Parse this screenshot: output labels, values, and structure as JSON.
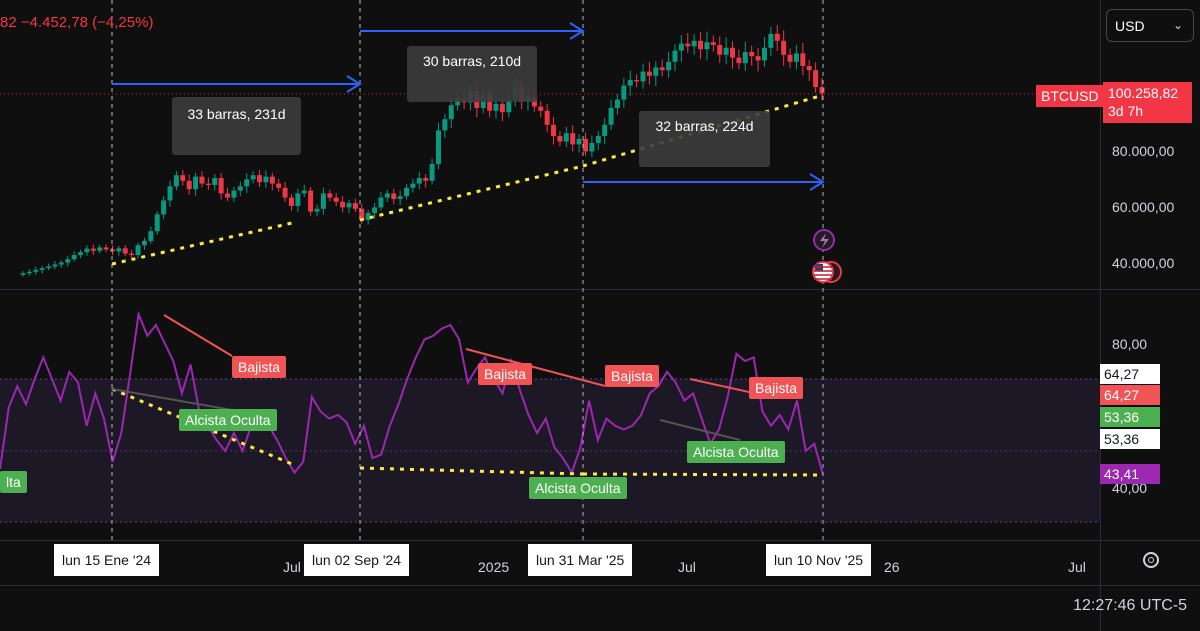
{
  "header": {
    "change_text": "82  −4.452,78 (−4,25%)"
  },
  "currency_select": {
    "value": "USD"
  },
  "symbol_label": {
    "symbol": "BTCUSD",
    "price": "100.258,82",
    "countdown": "3d 7h"
  },
  "clock": "12:27:46 UTC-5",
  "colors": {
    "up": "#089981",
    "down": "#f23645",
    "rsi": "#9c27b0",
    "dotted": "#ffeb3b",
    "arrow": "#2962ff",
    "bear_label": "#f05454",
    "bull_label": "#4caf50"
  },
  "price_axis": {
    "ticks": [
      "80.000,00",
      "60.000,00",
      "40.000,00"
    ]
  },
  "rsi_axis": {
    "ticks": [
      "80,00",
      "40,00"
    ],
    "badges": [
      "64,27",
      "64,27",
      "53,36",
      "53,36",
      "43,41"
    ]
  },
  "time_axis": {
    "ticks": [
      "Jul",
      "2025",
      "Jul",
      "26",
      "Jul"
    ],
    "crosshair_labels": [
      "lun 15 Ene '24",
      "lun 02 Sep '24",
      "lun 31 Mar '25",
      "lun 10 Nov '25"
    ]
  },
  "annotations": {
    "range_labels": [
      "33 barras, 231d",
      "30 barras, 210d",
      "32 barras, 224d"
    ],
    "divergence_labels": [
      "Bajista",
      "Bajista",
      "Bajista",
      "Bajista",
      "Alcista Oculta",
      "Alcista Oculta",
      "Alcista Oculta",
      "lta"
    ]
  },
  "chart_data": {
    "type": "candlestick",
    "timeframe": "3d",
    "x_range": [
      "2023-10",
      "2025-11"
    ],
    "price_ylim": [
      34000,
      122000
    ],
    "closes": [
      36000,
      36500,
      37200,
      37800,
      38400,
      39100,
      39800,
      41000,
      42500,
      43500,
      44800,
      44000,
      45200,
      44500,
      43800,
      44900,
      43000,
      42500,
      46000,
      47500,
      51000,
      57000,
      62000,
      67000,
      71000,
      69000,
      66000,
      70500,
      68000,
      67500,
      70000,
      64500,
      63000,
      65500,
      67000,
      69500,
      71000,
      68500,
      70500,
      68000,
      66500,
      63000,
      60000,
      64500,
      65500,
      58000,
      59000,
      64500,
      63000,
      61500,
      59500,
      61000,
      59000,
      55000,
      57500,
      59500,
      63000,
      64500,
      62500,
      63500,
      66500,
      68000,
      70000,
      69000,
      75000,
      87000,
      91000,
      96000,
      98500,
      97000,
      101000,
      95000,
      99500,
      94000,
      96500,
      93500,
      98000,
      102500,
      97500,
      99000,
      95500,
      94000,
      89000,
      85000,
      83000,
      86000,
      82000,
      84000,
      79500,
      82500,
      85000,
      89000,
      95000,
      98000,
      103000,
      105000,
      104500,
      108000,
      106500,
      109500,
      108500,
      111500,
      115500,
      118000,
      117000,
      119000,
      116000,
      118500,
      117500,
      114000,
      116500,
      113000,
      111000,
      115000,
      113500,
      112000,
      116500,
      121500,
      119000,
      114000,
      111500,
      114500,
      110000,
      108500,
      102500,
      100258.82
    ],
    "rsi": [
      45,
      62,
      68,
      63,
      70,
      76,
      70,
      64,
      72,
      69,
      57,
      66,
      59,
      47,
      55,
      71,
      88,
      82,
      85,
      80,
      75,
      66,
      74,
      61,
      57,
      53,
      50,
      55,
      50,
      57,
      56,
      57,
      53,
      48,
      44,
      47,
      65,
      61,
      59,
      60,
      58,
      52,
      57,
      48,
      49,
      57,
      63,
      70,
      76,
      81,
      82,
      84,
      85,
      81,
      69,
      73,
      76,
      70,
      66,
      75,
      67,
      60,
      55,
      59,
      51,
      48,
      44,
      51,
      64,
      53,
      59,
      57,
      56,
      57,
      60,
      66,
      68,
      72,
      69,
      64,
      66,
      59,
      52,
      56,
      65,
      77,
      75,
      76,
      61,
      57,
      60,
      56,
      64,
      50,
      52,
      43.41
    ],
    "rsi_ylim": [
      30,
      93
    ],
    "rsi_band": [
      30,
      70
    ],
    "measure_ranges": [
      {
        "label": "33 barras, 231d",
        "bars": 33,
        "days": 231
      },
      {
        "label": "30 barras, 210d",
        "bars": 30,
        "days": 210
      },
      {
        "label": "32 barras, 224d",
        "bars": 32,
        "days": 224
      }
    ]
  }
}
